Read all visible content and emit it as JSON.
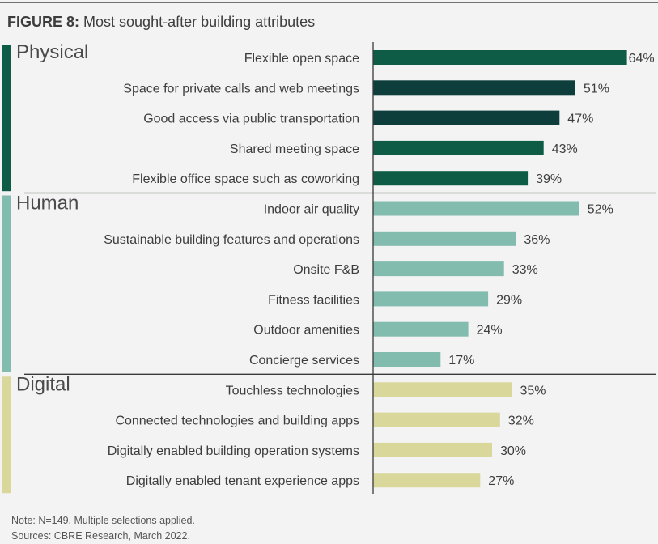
{
  "figure": {
    "label": "FIGURE 8:",
    "title": "Most sought-after building attributes"
  },
  "colors": {
    "physical_dark": "#0e5c45",
    "physical_darker": "#0d3e3c",
    "human": "#82bcae",
    "digital": "#dad79a"
  },
  "chart_data": {
    "type": "bar",
    "orientation": "horizontal",
    "value_suffix": "%",
    "groups": [
      {
        "name": "Physical",
        "color": "#0e5c45",
        "items": [
          {
            "label": "Flexible open space",
            "value": 64,
            "color": "#0e5c45"
          },
          {
            "label": "Space for private calls and web meetings",
            "value": 51,
            "color": "#0d3e3c"
          },
          {
            "label": "Good access via public transportation",
            "value": 47,
            "color": "#0d3e3c"
          },
          {
            "label": "Shared meeting space",
            "value": 43,
            "color": "#0e5c45"
          },
          {
            "label": "Flexible office space such as coworking",
            "value": 39,
            "color": "#0e5c45"
          }
        ]
      },
      {
        "name": "Human",
        "color": "#82bcae",
        "items": [
          {
            "label": "Indoor air quality",
            "value": 52,
            "color": "#82bcae"
          },
          {
            "label": "Sustainable building features and operations",
            "value": 36,
            "color": "#82bcae"
          },
          {
            "label": "Onsite F&B",
            "value": 33,
            "color": "#82bcae"
          },
          {
            "label": "Fitness facilities",
            "value": 29,
            "color": "#82bcae"
          },
          {
            "label": "Outdoor amenities",
            "value": 24,
            "color": "#82bcae"
          },
          {
            "label": "Concierge services",
            "value": 17,
            "color": "#82bcae"
          }
        ]
      },
      {
        "name": "Digital",
        "color": "#dad79a",
        "items": [
          {
            "label": "Touchless technologies",
            "value": 35,
            "color": "#dad79a"
          },
          {
            "label": "Connected technologies and building apps",
            "value": 32,
            "color": "#dad79a"
          },
          {
            "label": "Digitally enabled building operation systems",
            "value": 30,
            "color": "#dad79a"
          },
          {
            "label": "Digitally enabled tenant experience apps",
            "value": 27,
            "color": "#dad79a"
          }
        ]
      }
    ]
  },
  "notes": {
    "note": "Note: N=149. Multiple selections applied.",
    "sources": "Sources: CBRE Research, March 2022."
  }
}
